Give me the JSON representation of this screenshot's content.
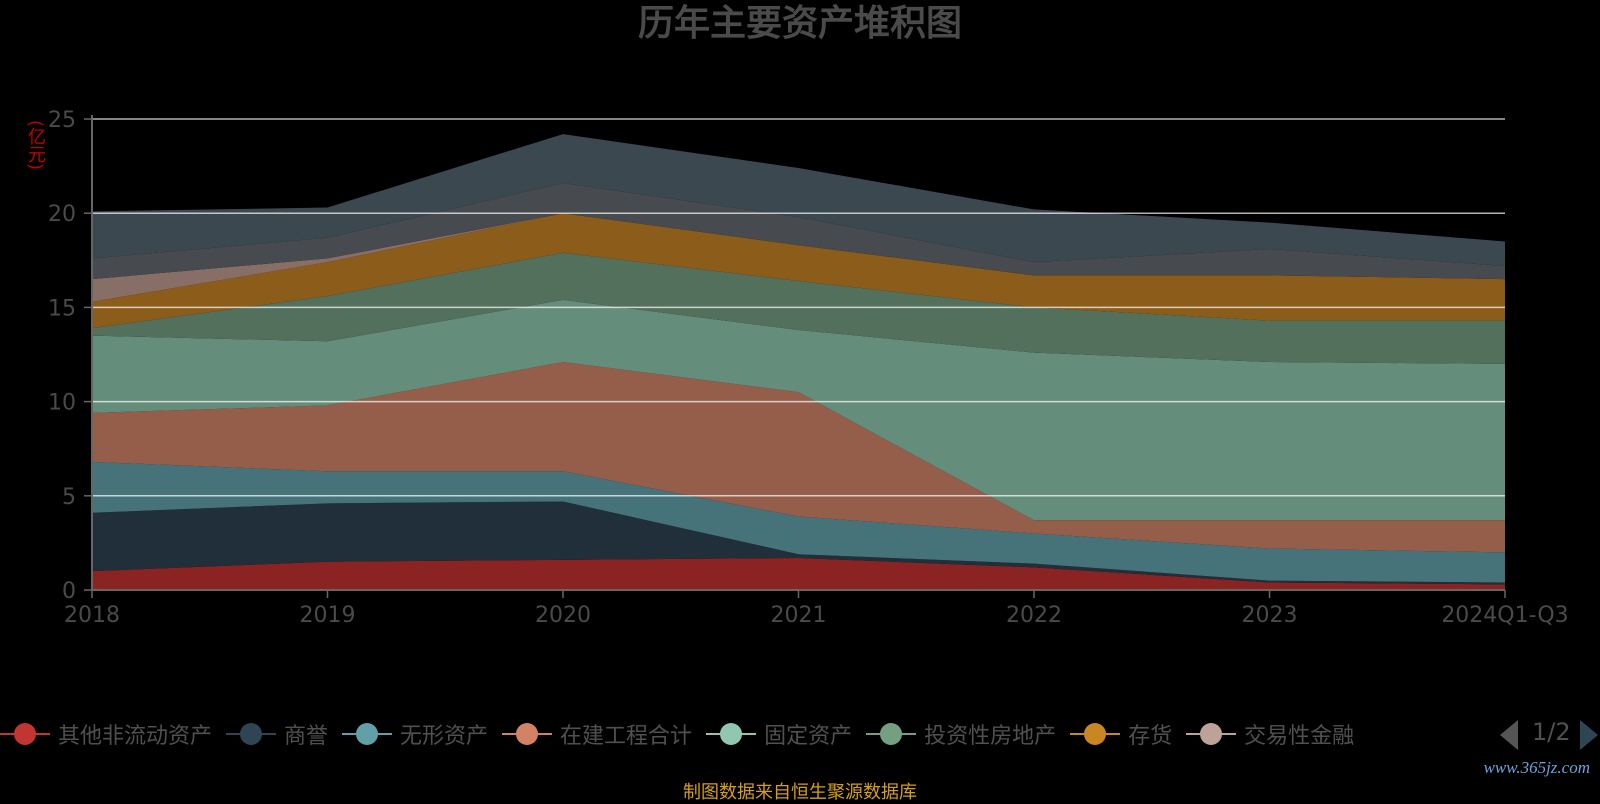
{
  "title": "历年主要资产堆积图",
  "unit": "(亿元)",
  "source": "制图数据来自恒生聚源数据库",
  "watermark": "www.365jz.com",
  "legend": {
    "items": [
      {
        "label": "其他非流动资产",
        "color": "#c23531"
      },
      {
        "label": "商誉",
        "color": "#2f4554"
      },
      {
        "label": "无形资产",
        "color": "#61a0a8"
      },
      {
        "label": "在建工程合计",
        "color": "#d48265"
      },
      {
        "label": "固定资产",
        "color": "#91c7ae"
      },
      {
        "label": "投资性房地产",
        "color": "#749f83"
      },
      {
        "label": "存货",
        "color": "#ca8622"
      },
      {
        "label": "交易性金融"
      }
    ],
    "last_color": "#bda29a",
    "page": "1/2"
  },
  "chart_data": {
    "type": "area",
    "stacked": true,
    "categories": [
      "2018",
      "2019",
      "2020",
      "2021",
      "2022",
      "2023",
      "2024Q1-Q3"
    ],
    "ylim": [
      0,
      25
    ],
    "yticks": [
      0,
      5,
      10,
      15,
      20,
      25
    ],
    "ylabel": "(亿元)",
    "grid": true,
    "legend_position": "bottom",
    "series": [
      {
        "name": "其他非流动资产",
        "color": "#8b2323",
        "values": [
          1.0,
          1.5,
          1.6,
          1.7,
          1.2,
          0.4,
          0.3
        ]
      },
      {
        "name": "商誉",
        "color": "#212f3a",
        "values": [
          3.1,
          3.1,
          3.1,
          0.2,
          0.2,
          0.1,
          0.1
        ]
      },
      {
        "name": "无形资产",
        "color": "#46737a",
        "values": [
          2.7,
          1.7,
          1.6,
          2.0,
          1.6,
          1.7,
          1.6
        ]
      },
      {
        "name": "在建工程合计",
        "color": "#955e4b",
        "values": [
          2.6,
          3.5,
          5.8,
          6.6,
          0.7,
          1.5,
          1.7
        ]
      },
      {
        "name": "固定资产",
        "color": "#658d7b",
        "values": [
          4.1,
          3.4,
          3.3,
          3.3,
          8.9,
          8.4,
          8.3
        ]
      },
      {
        "name": "投资性房地产",
        "color": "#52705c",
        "values": [
          0.4,
          2.4,
          2.5,
          2.6,
          2.4,
          2.2,
          2.3
        ]
      },
      {
        "name": "存货",
        "color": "#8b5c1a",
        "values": [
          1.4,
          1.8,
          2.1,
          1.9,
          1.7,
          2.4,
          2.2
        ]
      },
      {
        "name": "交易性金融资产",
        "color": "#876f68",
        "values": [
          1.2,
          0.2,
          0.0,
          0.0,
          0.0,
          0.0,
          0.0
        ]
      },
      {
        "name": "",
        "color": "#474a4e",
        "values": [
          1.1,
          1.1,
          1.6,
          1.5,
          0.7,
          1.4,
          0.7
        ]
      },
      {
        "name": "",
        "color": "#3b4850",
        "values": [
          2.5,
          1.6,
          2.6,
          2.6,
          2.8,
          1.4,
          1.3
        ]
      }
    ]
  }
}
